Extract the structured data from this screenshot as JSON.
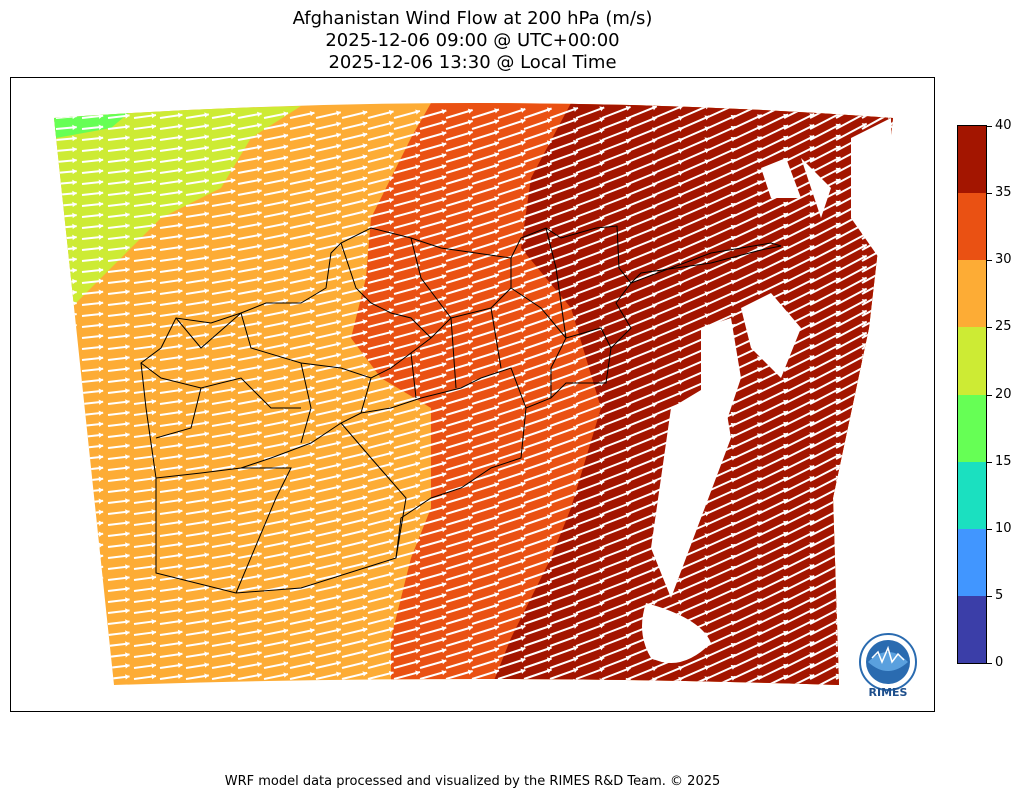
{
  "title": {
    "line1": "Afghanistan Wind Flow at 200 hPa (m/s)",
    "line2": "2025-12-06 09:00 @ UTC+00:00",
    "line3": "2025-12-06 13:30 @ Local Time"
  },
  "colorbar": {
    "ticks": [
      "0",
      "5",
      "10",
      "15",
      "20",
      "25",
      "30",
      "35",
      "40"
    ],
    "bins": [
      {
        "min": 0,
        "max": 5,
        "color": "#3b3ea8"
      },
      {
        "min": 5,
        "max": 10,
        "color": "#4196ff"
      },
      {
        "min": 10,
        "max": 15,
        "color": "#1be0c0"
      },
      {
        "min": 15,
        "max": 20,
        "color": "#66ff55"
      },
      {
        "min": 20,
        "max": 25,
        "color": "#cdeb34"
      },
      {
        "min": 25,
        "max": 30,
        "color": "#fdac35"
      },
      {
        "min": 30,
        "max": 35,
        "color": "#ea5113"
      },
      {
        "min": 35,
        "max": 40,
        "color": "#a31500"
      }
    ]
  },
  "map": {
    "flow_direction": "west-to-east",
    "arrow_color": "#ffffff",
    "boundary_color": "#000000"
  },
  "logo": {
    "text": "RIMES"
  },
  "footer": {
    "text": "WRF model data processed and visualized by the RIMES R&D Team. © 2025"
  }
}
